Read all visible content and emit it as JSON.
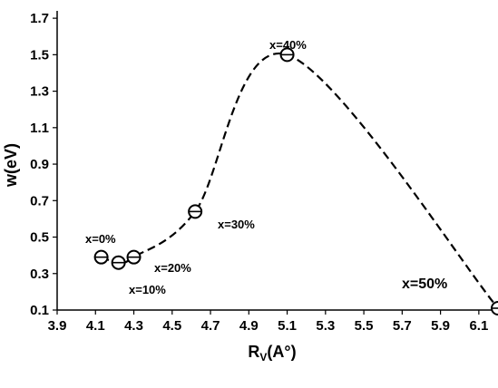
{
  "chart_data": {
    "type": "scatter",
    "title": "",
    "xlabel_main": "R",
    "xlabel_sub": "V",
    "xlabel_tail": "(A°)",
    "ylabel": "w(eV)",
    "xlim": [
      3.9,
      6.2
    ],
    "ylim": [
      0.1,
      1.8
    ],
    "x_ticks": [
      "3.9",
      "4.1",
      "4.3",
      "4.5",
      "4.7",
      "4.9",
      "5.1",
      "5.3",
      "5.5",
      "5.7",
      "5.9",
      "6.1"
    ],
    "y_ticks": [
      "0.1",
      "0.3",
      "0.5",
      "0.7",
      "0.9",
      "1.1",
      "1.3",
      "1.5",
      "1.7"
    ],
    "grid": false,
    "marker": "open-circle",
    "line_style": "dashed",
    "points": [
      {
        "x": 4.13,
        "y": 0.39
      },
      {
        "x": 4.22,
        "y": 0.36
      },
      {
        "x": 4.3,
        "y": 0.39
      },
      {
        "x": 4.62,
        "y": 0.64
      },
      {
        "x": 5.1,
        "y": 1.5
      },
      {
        "x": 6.2,
        "y": 0.11
      }
    ],
    "annotations": [
      "x=0%",
      "x=10%",
      "x=20%",
      "x=30%",
      "x=40%",
      "x=50%"
    ]
  }
}
